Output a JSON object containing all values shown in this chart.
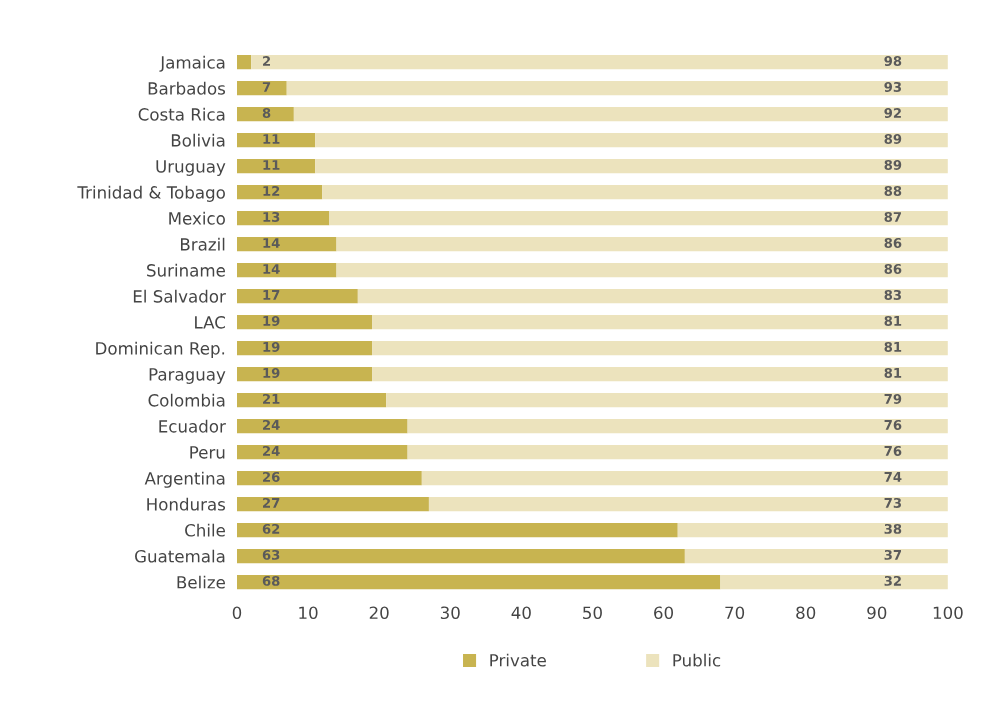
{
  "chart_data": {
    "type": "bar",
    "orientation": "horizontal",
    "stacked": true,
    "data_labels": true,
    "legend": "bottom",
    "grid": false,
    "categories": [
      "Jamaica",
      "Barbados",
      "Costa Rica",
      "Bolivia",
      "Uruguay",
      "Trinidad & Tobago",
      "Mexico",
      "Brazil",
      "Suriname",
      "El Salvador",
      "LAC",
      "Dominican Rep.",
      "Paraguay",
      "Colombia",
      "Ecuador",
      "Peru",
      "Argentina",
      "Honduras",
      "Chile",
      "Guatemala",
      "Belize"
    ],
    "series": [
      {
        "name": "Private",
        "color": "#c8b450",
        "values": [
          2,
          7,
          8,
          11,
          11,
          12,
          13,
          14,
          14,
          17,
          19,
          19,
          19,
          21,
          24,
          24,
          26,
          27,
          62,
          63,
          68
        ]
      },
      {
        "name": "Public",
        "color": "#ece3bd",
        "values": [
          98,
          93,
          92,
          89,
          89,
          88,
          87,
          86,
          86,
          83,
          81,
          81,
          81,
          79,
          76,
          76,
          74,
          73,
          38,
          37,
          32
        ]
      }
    ],
    "xlim": [
      0,
      100
    ],
    "xticks": [
      0,
      10,
      20,
      30,
      40,
      50,
      60,
      70,
      80,
      90,
      100
    ]
  }
}
